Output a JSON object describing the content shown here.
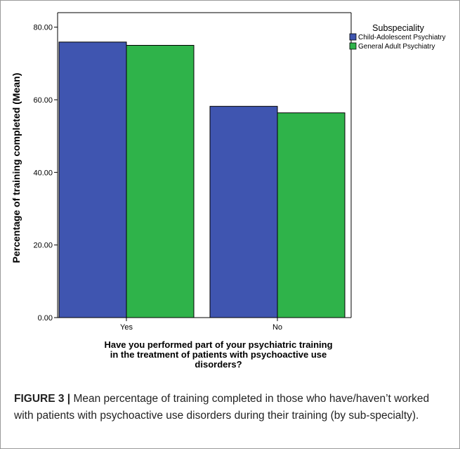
{
  "chart_data": {
    "type": "bar",
    "categories": [
      "Yes",
      "No"
    ],
    "series": [
      {
        "name": "Child-Adolescent Psychiatry",
        "values": [
          75.9,
          58.2
        ],
        "color": "#3f55b0"
      },
      {
        "name": "General Adult Psychiatry",
        "values": [
          75.0,
          56.4
        ],
        "color": "#2fb34a"
      }
    ],
    "ylim": [
      0,
      80
    ],
    "yticks": [
      0,
      20,
      40,
      60,
      80
    ],
    "ytick_labels": [
      "0.00",
      "20.00",
      "40.00",
      "60.00",
      "80.00"
    ],
    "ylabel": "Percentage of training completed (Mean)",
    "xlabel_lines": [
      "Have you performed part of your psychiatric training",
      "in the treatment of patients with psychoactive use",
      "disorders?"
    ],
    "legend_title": "Subspeciality",
    "legend_position": "top-right",
    "grid": false
  },
  "caption": {
    "label": "FIGURE 3",
    "separator": "|",
    "text": "Mean percentage of training completed in those who have/haven’t worked with patients with psychoactive use disorders during their training (by sub-specialty)."
  }
}
